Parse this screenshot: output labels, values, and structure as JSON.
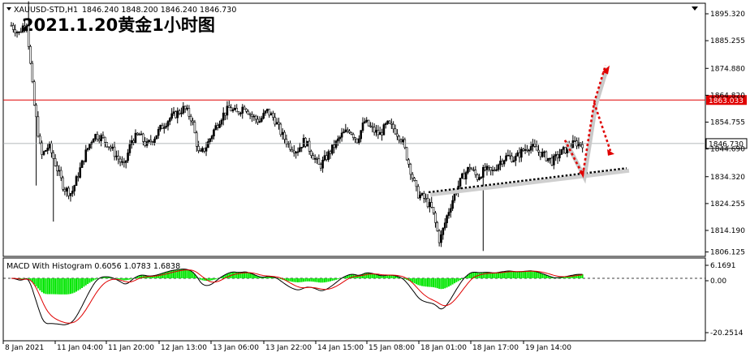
{
  "header": {
    "instrument": "XAUUSD-STD,H1",
    "ohlc": "1846.240 1848.200 1846.240 1846.730",
    "overlay_title": "2021.1.20黄金1小时图"
  },
  "macd_panel": {
    "title": "MACD With Histogram 0.6056 1.0783 1.6838"
  },
  "chart_data": [
    {
      "type": "candlestick",
      "timeframe": "H1",
      "ylim": [
        1806,
        1900
      ],
      "y_ticks": [
        "1895.320",
        "1885.255",
        "1874.880",
        "1864.820",
        "1854.755",
        "1844.690",
        "1834.320",
        "1824.255",
        "1814.190",
        "1806.125"
      ],
      "x_ticks": [
        "8 Jan 2021",
        "11 Jan 04:00",
        "11 Jan 20:00",
        "12 Jan 13:00",
        "13 Jan 06:00",
        "13 Jan 22:00",
        "14 Jan 15:00",
        "15 Jan 08:00",
        "18 Jan 01:00",
        "18 Jan 17:00",
        "19 Jan 14:00"
      ],
      "close_path": [
        1891,
        1888,
        1893,
        1862,
        1842,
        1846,
        1838,
        1830,
        1828,
        1836,
        1844,
        1850,
        1849,
        1846,
        1842,
        1838,
        1848,
        1850,
        1846,
        1849,
        1853,
        1856,
        1858,
        1860,
        1856,
        1842,
        1846,
        1852,
        1857,
        1860,
        1858,
        1861,
        1857,
        1855,
        1859,
        1856,
        1850,
        1846,
        1844,
        1848,
        1843,
        1838,
        1842,
        1846,
        1850,
        1852,
        1848,
        1855,
        1852,
        1850,
        1854,
        1852,
        1848,
        1838,
        1828,
        1826,
        1822,
        1810,
        1820,
        1828,
        1834,
        1838,
        1834,
        1837,
        1836,
        1840,
        1842,
        1841,
        1844,
        1846,
        1844,
        1842,
        1840,
        1843,
        1845,
        1847,
        1846.73
      ],
      "candle_count": 300,
      "horizontal_line": {
        "price": 1863.033,
        "label": "1863.033",
        "color": "#e00000"
      },
      "current_price": {
        "price": 1846.73,
        "label": "1846.730"
      },
      "trendline": {
        "from_price": 1828.5,
        "to_price": 1837.5,
        "style": "dotted",
        "color": "#000000"
      },
      "forecast_arrow": {
        "points": [
          1848,
          1835,
          1862,
          1876
        ],
        "alt_points": [
          1862,
          1844
        ],
        "color": "#e00000"
      }
    },
    {
      "type": "bar+line",
      "name": "MACD With Histogram",
      "values_shown": [
        0.6056,
        1.0783,
        1.6838
      ],
      "y_ticks": [
        "6.1691",
        "0.00",
        "-20.2514"
      ],
      "ylim": [
        -20.2514,
        6.1691
      ],
      "histogram_color": "#00e600"
    }
  ],
  "colors": {
    "bull": "#000000",
    "bear_body": "#ffffff",
    "line": "#000000",
    "signal": "#e00000",
    "grid": "#9ba2a5"
  }
}
